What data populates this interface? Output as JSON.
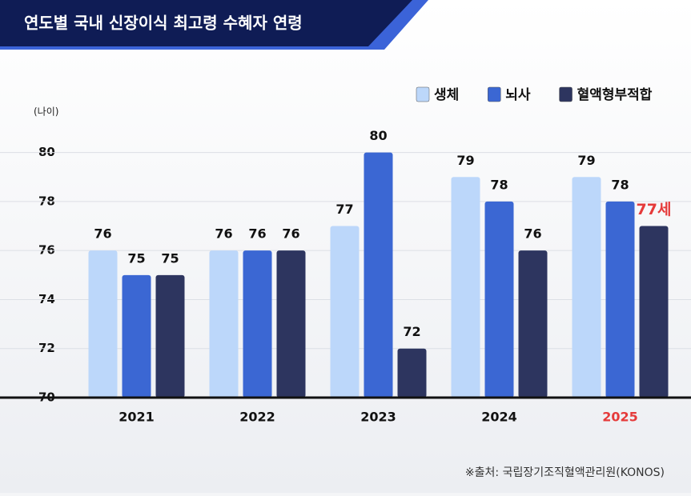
{
  "chart_data": {
    "type": "bar",
    "title": "연도별 국내 신장이식 최고령 수혜자 연령",
    "y_axis_label": "(나이)",
    "source": "※출처: 국립장기조직혈액관리원(KONOS)",
    "categories": [
      "2021",
      "2022",
      "2023",
      "2024",
      "2025"
    ],
    "series": [
      {
        "name": "생체",
        "color": "#bcd7fa",
        "values": [
          76,
          76,
          77,
          79,
          79
        ]
      },
      {
        "name": "뇌사",
        "color": "#3b67d3",
        "values": [
          75,
          76,
          80,
          78,
          78
        ]
      },
      {
        "name": "혈액형부적합",
        "color": "#2d355f",
        "values": [
          75,
          76,
          72,
          76,
          77
        ],
        "value_labels": [
          "75",
          "76",
          "72",
          "76",
          "77세"
        ]
      }
    ],
    "highlight": {
      "category": 4,
      "color": "#e53a3a"
    },
    "ylim": [
      70,
      81
    ],
    "yticks": [
      70,
      72,
      74,
      76,
      78,
      80
    ],
    "grid": true,
    "legend": "top-right"
  }
}
